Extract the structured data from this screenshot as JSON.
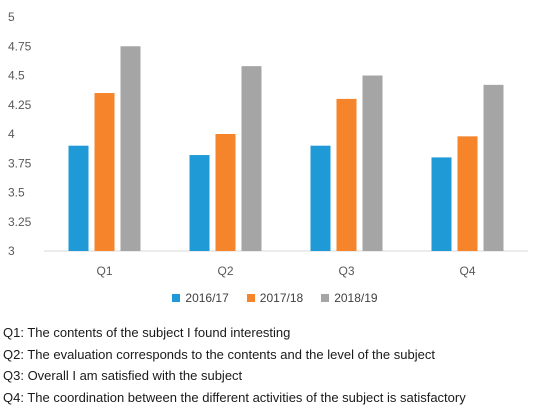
{
  "chart_data": {
    "type": "bar",
    "categories": [
      "Q1",
      "Q2",
      "Q3",
      "Q4"
    ],
    "series": [
      {
        "name": "2016/17",
        "color": "#1f9ad6",
        "values": [
          3.9,
          3.82,
          3.9,
          3.8
        ]
      },
      {
        "name": "2017/18",
        "color": "#f5842a",
        "values": [
          4.35,
          4.0,
          4.3,
          3.98
        ]
      },
      {
        "name": "2018/19",
        "color": "#a5a5a5",
        "values": [
          4.75,
          4.58,
          4.5,
          4.42
        ]
      }
    ],
    "y_ticks": [
      "3",
      "3.25",
      "3.5",
      "3.75",
      "4",
      "4.25",
      "4.5",
      "4.75",
      "5"
    ],
    "ylim": [
      3,
      5
    ],
    "grid": false,
    "legend_position": "bottom"
  },
  "notes": [
    "Q1: The contents of the subject I found interesting",
    "Q2: The evaluation corresponds to the contents and the level of the subject",
    "Q3: Overall I am satisfied with the subject",
    "Q4: The coordination between the different activities of the subject is satisfactory"
  ]
}
